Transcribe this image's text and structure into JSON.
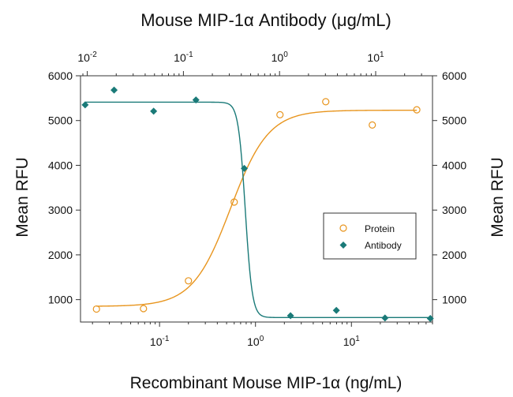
{
  "chart_data": {
    "type": "scatter",
    "title_top": "Mouse MIP-1α Antibody (μg/mL)",
    "xlabel": "Recombinant Mouse MIP-1α (ng/mL)",
    "ylabel_left": "Mean RFU",
    "ylabel_right": "Mean RFU",
    "x_scale": "log",
    "x_bottom_lim": [
      0.015,
      70
    ],
    "x_top_lim": [
      0.0085,
      39
    ],
    "ylim": [
      500,
      6000
    ],
    "yticks": [
      1000,
      2000,
      3000,
      4000,
      5000,
      6000
    ],
    "ytick_labels": [
      "1000",
      "2000",
      "3000",
      "4000",
      "5000",
      "6000"
    ],
    "x_bottom_ticks": [
      {
        "value": 0.1,
        "base": "10",
        "exp": "-1"
      },
      {
        "value": 1,
        "base": "10",
        "exp": "0"
      },
      {
        "value": 10,
        "base": "10",
        "exp": "1"
      }
    ],
    "x_top_ticks": [
      {
        "value": 0.01,
        "base": "10",
        "exp": "-2"
      },
      {
        "value": 0.1,
        "base": "10",
        "exp": "-1"
      },
      {
        "value": 1,
        "base": "10",
        "exp": "0"
      },
      {
        "value": 10,
        "base": "10",
        "exp": "1"
      }
    ],
    "legend_position": "center-right",
    "series": [
      {
        "name": "Protein",
        "axis": "bottom",
        "marker": "open-circle",
        "color": "#e8951e",
        "points": [
          {
            "x": 0.022,
            "y": 790
          },
          {
            "x": 0.068,
            "y": 800
          },
          {
            "x": 0.2,
            "y": 1420
          },
          {
            "x": 0.6,
            "y": 3180
          },
          {
            "x": 1.8,
            "y": 5130
          },
          {
            "x": 5.4,
            "y": 5420
          },
          {
            "x": 16.5,
            "y": 4900
          },
          {
            "x": 48,
            "y": 5240
          }
        ],
        "fit": {
          "model": "4PL",
          "bottom": 850,
          "top": 5230,
          "ec50": 0.55,
          "hill": 2.2
        }
      },
      {
        "name": "Antibody",
        "axis": "top",
        "marker": "filled-diamond",
        "color": "#1a7a78",
        "points": [
          {
            "x": 0.0095,
            "y": 5350
          },
          {
            "x": 0.019,
            "y": 5680
          },
          {
            "x": 0.049,
            "y": 5210
          },
          {
            "x": 0.135,
            "y": 5460
          },
          {
            "x": 0.43,
            "y": 3930
          },
          {
            "x": 1.3,
            "y": 640
          },
          {
            "x": 3.9,
            "y": 760
          },
          {
            "x": 12.5,
            "y": 590
          },
          {
            "x": 37,
            "y": 580
          }
        ],
        "fit": {
          "model": "4PL-decreasing",
          "bottom": 600,
          "top": 5410,
          "ic50": 0.44,
          "hill": 12
        }
      }
    ]
  }
}
